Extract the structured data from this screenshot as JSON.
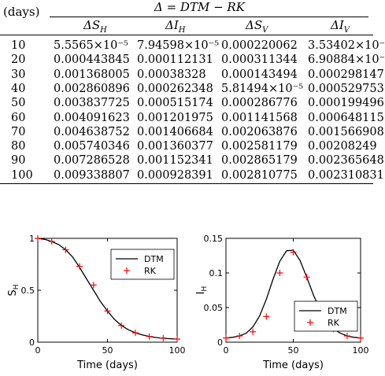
{
  "table": {
    "header_days": "(days)",
    "header_delta": "Δ = DTM − RK",
    "columns": [
      "ΔS_H",
      "ΔI_H",
      "ΔS_V",
      "ΔI_V"
    ],
    "rows": [
      [
        "10",
        "5.5565×10⁻⁵",
        "7.94598×10⁻⁵",
        "0.000220062",
        "3.53402×10⁻"
      ],
      [
        "20",
        "0.000443845",
        "0.000112131",
        "0.000311344",
        "6.90884×10⁻"
      ],
      [
        "30",
        "0.001368005",
        "0.00038328",
        "0.000143494",
        "0.000298147"
      ],
      [
        "40",
        "0.002860896",
        "0.000262348",
        "5.81494×10⁻⁵",
        "0.000529753"
      ],
      [
        "50",
        "0.003837725",
        "0.000515174",
        "0.000286776",
        "0.000199496"
      ],
      [
        "60",
        "0.004091623",
        "0.001201975",
        "0.001141568",
        "0.000648115"
      ],
      [
        "70",
        "0.004638752",
        "0.001406684",
        "0.002063876",
        "0.001566908"
      ],
      [
        "80",
        "0.005740346",
        "0.001360377",
        "0.002581179",
        "0.00208249"
      ],
      [
        "90",
        "0.007286528",
        "0.001152341",
        "0.002865179",
        "0.002365648"
      ],
      [
        "100",
        "0.009338807",
        "0.000928391",
        "0.002810775",
        "0.002310831"
      ]
    ]
  },
  "chart_data": [
    {
      "type": "line",
      "xlabel": "Time (days)",
      "ylabel": "S_H",
      "xlim": [
        0,
        100
      ],
      "ylim": [
        0,
        1
      ],
      "xticks": [
        "0",
        "50",
        "100"
      ],
      "yticks": [
        "0",
        "0.5",
        "1"
      ],
      "legend": "top-right",
      "series": [
        {
          "name": "DTM",
          "style": "line",
          "color": "#000000",
          "x": [
            0,
            5,
            10,
            15,
            20,
            25,
            30,
            35,
            40,
            45,
            50,
            55,
            60,
            65,
            70,
            75,
            80,
            85,
            90,
            95,
            100
          ],
          "y": [
            1.0,
            0.99,
            0.97,
            0.94,
            0.89,
            0.82,
            0.72,
            0.61,
            0.5,
            0.39,
            0.3,
            0.22,
            0.16,
            0.12,
            0.09,
            0.07,
            0.055,
            0.045,
            0.038,
            0.033,
            0.03
          ]
        },
        {
          "name": "RK",
          "style": "marker",
          "color": "#ff0000",
          "x": [
            0,
            10,
            20,
            30,
            40,
            50,
            60,
            70,
            80,
            90,
            100
          ],
          "y": [
            1.0,
            0.97,
            0.89,
            0.73,
            0.55,
            0.3,
            0.16,
            0.09,
            0.055,
            0.04,
            0.03
          ]
        }
      ]
    },
    {
      "type": "line",
      "xlabel": "Time (days)",
      "ylabel": "I_H",
      "xlim": [
        0,
        100
      ],
      "ylim": [
        0,
        0.15
      ],
      "xticks": [
        "0",
        "50",
        "100"
      ],
      "yticks": [
        "0",
        "0.05",
        "0.1",
        "0.15"
      ],
      "legend": "bottom-right",
      "series": [
        {
          "name": "DTM",
          "style": "line",
          "color": "#000000",
          "x": [
            0,
            5,
            10,
            15,
            20,
            25,
            30,
            35,
            40,
            45,
            50,
            55,
            60,
            65,
            70,
            75,
            80,
            85,
            90,
            95,
            100
          ],
          "y": [
            0.006,
            0.007,
            0.009,
            0.013,
            0.022,
            0.038,
            0.062,
            0.091,
            0.117,
            0.132,
            0.133,
            0.118,
            0.094,
            0.068,
            0.046,
            0.03,
            0.019,
            0.013,
            0.009,
            0.007,
            0.006
          ]
        },
        {
          "name": "RK",
          "style": "marker",
          "color": "#ff0000",
          "x": [
            0,
            10,
            20,
            30,
            40,
            50,
            60,
            70,
            80,
            90,
            100
          ],
          "y": [
            0.006,
            0.009,
            0.015,
            0.037,
            0.1,
            0.13,
            0.094,
            0.046,
            0.019,
            0.009,
            0.006
          ]
        }
      ]
    }
  ]
}
